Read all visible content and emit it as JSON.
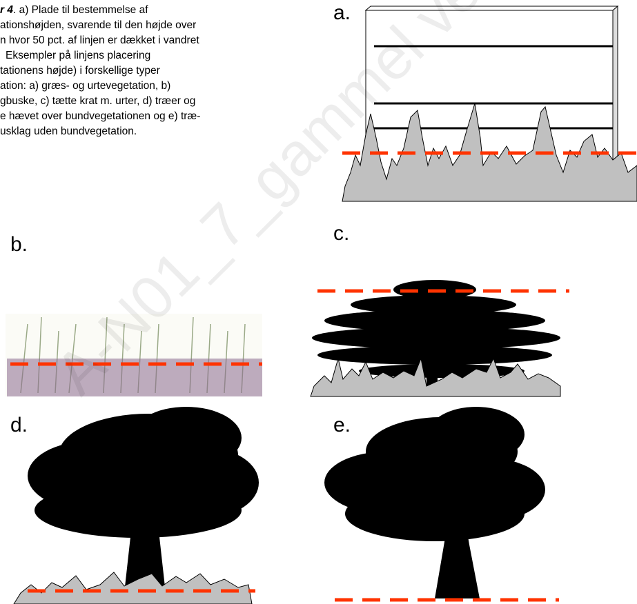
{
  "caption": {
    "lines": [
      {
        "emph": "r 4",
        "text": ". a) Plade til bestemmelse af"
      },
      {
        "text": "ationshøjden, svarende til den højde over"
      },
      {
        "text": "n hvor 50 pct. af linjen er dækket i vandret"
      },
      {
        "text": "Eksempler på linjens placering"
      },
      {
        "text": "tationens højde) i forskellige typer"
      },
      {
        "text": "ation: a) græs- og urtevegetation, b)"
      },
      {
        "text": "gbuske, c) tætte krat m. urter, d) træer og"
      },
      {
        "text": "e hævet over bundvegetationen og e) træ-"
      },
      {
        "text": "usklag uden bundvegetation."
      }
    ]
  },
  "panels": {
    "a": "a.",
    "b": "b.",
    "c": "c.",
    "d": "d.",
    "e": "e."
  },
  "watermark": "A-N01_7_gammel ve"
}
